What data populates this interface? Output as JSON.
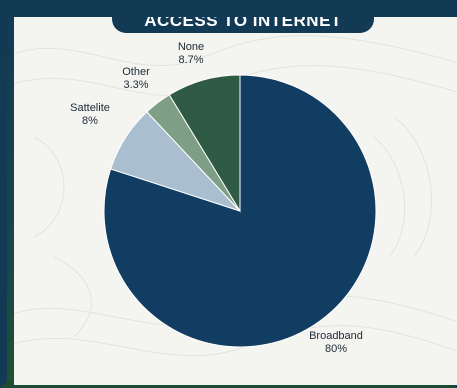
{
  "chart_data": {
    "type": "pie",
    "title": "ACCESS TO INTERNET",
    "slices": [
      {
        "label": "Broadband",
        "value": 80,
        "display": "80%",
        "color": "#123d63"
      },
      {
        "label": "Sattelite",
        "value": 8,
        "display": "8%",
        "color": "#a9bfcf"
      },
      {
        "label": "Other",
        "value": 3.3,
        "display": "3.3%",
        "color": "#7f9e86"
      },
      {
        "label": "None",
        "value": 8.7,
        "display": "8.7%",
        "color": "#2f5a44"
      }
    ]
  },
  "colors": {
    "frame": "#123a55",
    "panel": "#f4f4f1",
    "slice_border": "#ffffff"
  }
}
